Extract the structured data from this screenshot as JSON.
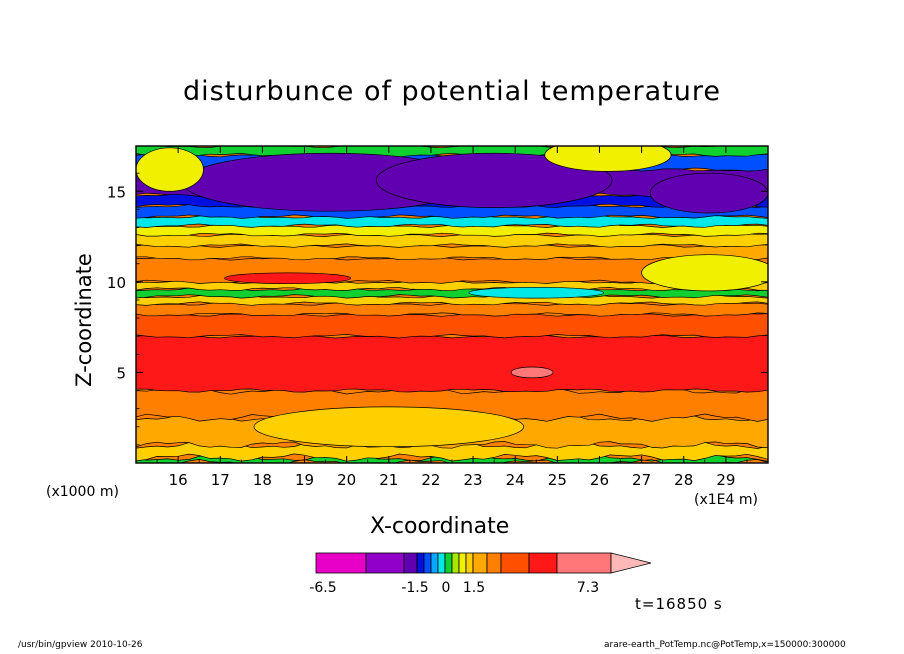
{
  "chart_data": {
    "type": "heatmap",
    "title": "disturbunce of potential temperature",
    "xlabel": "X-coordinate",
    "ylabel": "Z-coordinate",
    "x_unit": "(x1E4 m)",
    "z_unit": "(x1000 m)",
    "x_ticks": [
      "16",
      "17",
      "18",
      "19",
      "20",
      "21",
      "22",
      "23",
      "24",
      "25",
      "26",
      "27",
      "28",
      "29"
    ],
    "y_ticks": [
      "5",
      "10",
      "15"
    ],
    "xlim": [
      15.0,
      30.0
    ],
    "ylim": [
      0.0,
      17.5
    ],
    "colorbar_labels": [
      {
        "text": "-6.5",
        "value": -6.5
      },
      {
        "text": "-1.5",
        "value": -1.5
      },
      {
        "text": "0",
        "value": 0
      },
      {
        "text": "1.5",
        "value": 1.5
      },
      {
        "text": "7.3",
        "value": 7.3
      }
    ],
    "colorbar_colors": [
      "#e800c8",
      "#9000c8",
      "#6000b0",
      "#0010e0",
      "#0050ff",
      "#00a8ff",
      "#00e8e8",
      "#10d030",
      "#a8e800",
      "#f0f000",
      "#ffd000",
      "#ffa800",
      "#ff8000",
      "#ff5000",
      "#ff1818",
      "#ff7878",
      "#ffb8b8"
    ],
    "time_label": "t=16850 s",
    "layers": [
      {
        "z0": 0.0,
        "z1": 0.3,
        "color": "#10d030"
      },
      {
        "z0": 0.3,
        "z1": 1.0,
        "color": "#ffd000"
      },
      {
        "z0": 1.0,
        "z1": 2.5,
        "color": "#ffa800"
      },
      {
        "z0": 2.5,
        "z1": 4.0,
        "color": "#ff8000"
      },
      {
        "z0": 4.0,
        "z1": 7.0,
        "color": "#ff1818"
      },
      {
        "z0": 7.0,
        "z1": 8.2,
        "color": "#ff5000"
      },
      {
        "z0": 8.2,
        "z1": 8.8,
        "color": "#ff8000"
      },
      {
        "z0": 8.8,
        "z1": 9.2,
        "color": "#ffd000"
      },
      {
        "z0": 9.2,
        "z1": 9.6,
        "color": "#10d030"
      },
      {
        "z0": 9.6,
        "z1": 10.0,
        "color": "#ffd000"
      },
      {
        "z0": 10.0,
        "z1": 11.3,
        "color": "#ff8000"
      },
      {
        "z0": 11.3,
        "z1": 12.0,
        "color": "#ffa800"
      },
      {
        "z0": 12.0,
        "z1": 12.6,
        "color": "#ffd000"
      },
      {
        "z0": 12.6,
        "z1": 13.1,
        "color": "#f0f000"
      },
      {
        "z0": 13.1,
        "z1": 13.6,
        "color": "#00e8e8"
      },
      {
        "z0": 13.6,
        "z1": 14.2,
        "color": "#0050ff"
      },
      {
        "z0": 14.2,
        "z1": 14.8,
        "color": "#0010e0"
      },
      {
        "z0": 14.8,
        "z1": 16.2,
        "color": "#6000b0"
      },
      {
        "z0": 16.2,
        "z1": 17.0,
        "color": "#0050ff"
      },
      {
        "z0": 17.0,
        "z1": 17.5,
        "color": "#10d030"
      }
    ]
  },
  "footer": {
    "left": "/usr/bin/gpview   2010-10-26",
    "right": "arare-earth_PotTemp.nc@PotTemp,x=150000:300000"
  }
}
